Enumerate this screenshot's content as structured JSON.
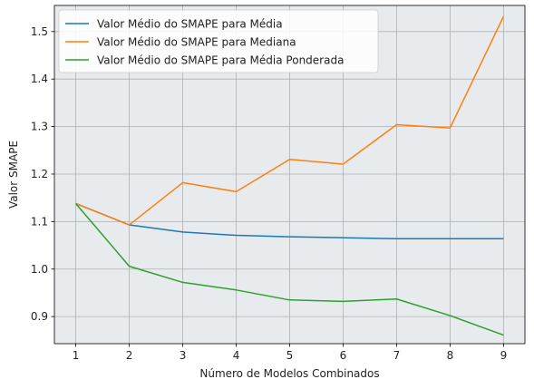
{
  "chart_data": {
    "type": "line",
    "title": "",
    "xlabel": "Número de Modelos Combinados",
    "ylabel": "Valor SMAPE",
    "x": [
      1,
      2,
      3,
      4,
      5,
      6,
      7,
      8,
      9
    ],
    "x_ticks": [
      "1",
      "2",
      "3",
      "4",
      "5",
      "6",
      "7",
      "8",
      "9"
    ],
    "y_ticks": [
      "0.9",
      "1.0",
      "1.1",
      "1.2",
      "1.3",
      "1.4",
      "1.5"
    ],
    "xlim": [
      0.6,
      9.4
    ],
    "ylim": [
      0.843,
      1.555
    ],
    "grid": true,
    "legend_position": "top-left",
    "background_color": "#e8ebee",
    "grid_color": "#b0b0b0",
    "series": [
      {
        "name": "Valor Médio do SMAPE para Média",
        "color": "#1f77b4",
        "values": [
          1.138,
          1.093,
          1.078,
          1.071,
          1.068,
          1.066,
          1.064,
          1.064,
          1.064
        ]
      },
      {
        "name": "Valor Médio do SMAPE para Mediana",
        "color": "#ff7f0e",
        "values": [
          1.138,
          1.093,
          1.182,
          1.163,
          1.231,
          1.221,
          1.304,
          1.297,
          1.532
        ]
      },
      {
        "name": "Valor Médio do SMAPE para Média Ponderada",
        "color": "#2ca02c",
        "values": [
          1.138,
          1.006,
          0.972,
          0.956,
          0.935,
          0.932,
          0.937,
          0.902,
          0.861
        ]
      }
    ]
  }
}
